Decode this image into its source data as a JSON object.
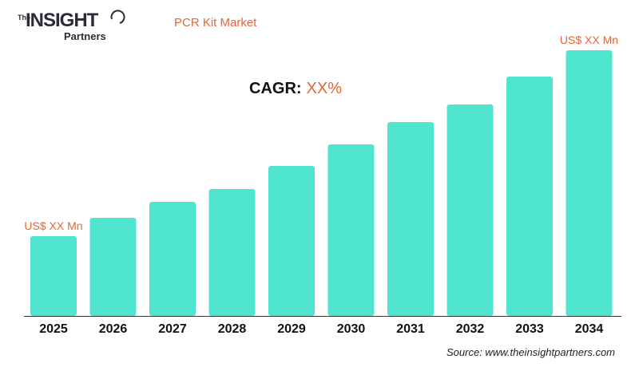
{
  "logo": {
    "the": "The",
    "brand": "INSIGHT",
    "sub": "Partners"
  },
  "title": "PCR Kit Market",
  "cagr": {
    "label": "CAGR:",
    "value": "XX%"
  },
  "source": "Source: www.theinsightpartners.com",
  "colors": {
    "bar": "#4fe5cf",
    "accent": "#e2673a",
    "text": "#111111"
  },
  "chart_data": {
    "type": "bar",
    "categories": [
      "2025",
      "2026",
      "2027",
      "2028",
      "2029",
      "2030",
      "2031",
      "2032",
      "2033",
      "2034"
    ],
    "values": [
      100,
      123,
      143,
      159,
      188,
      215,
      243,
      265,
      300,
      333
    ],
    "annotations": [
      {
        "category": "2025",
        "text": "US$ XX Mn"
      },
      {
        "category": "2034",
        "text": "US$ XX Mn"
      }
    ],
    "title": "PCR Kit Market",
    "xlabel": "",
    "ylabel": "",
    "grid": false,
    "legend": "none"
  }
}
